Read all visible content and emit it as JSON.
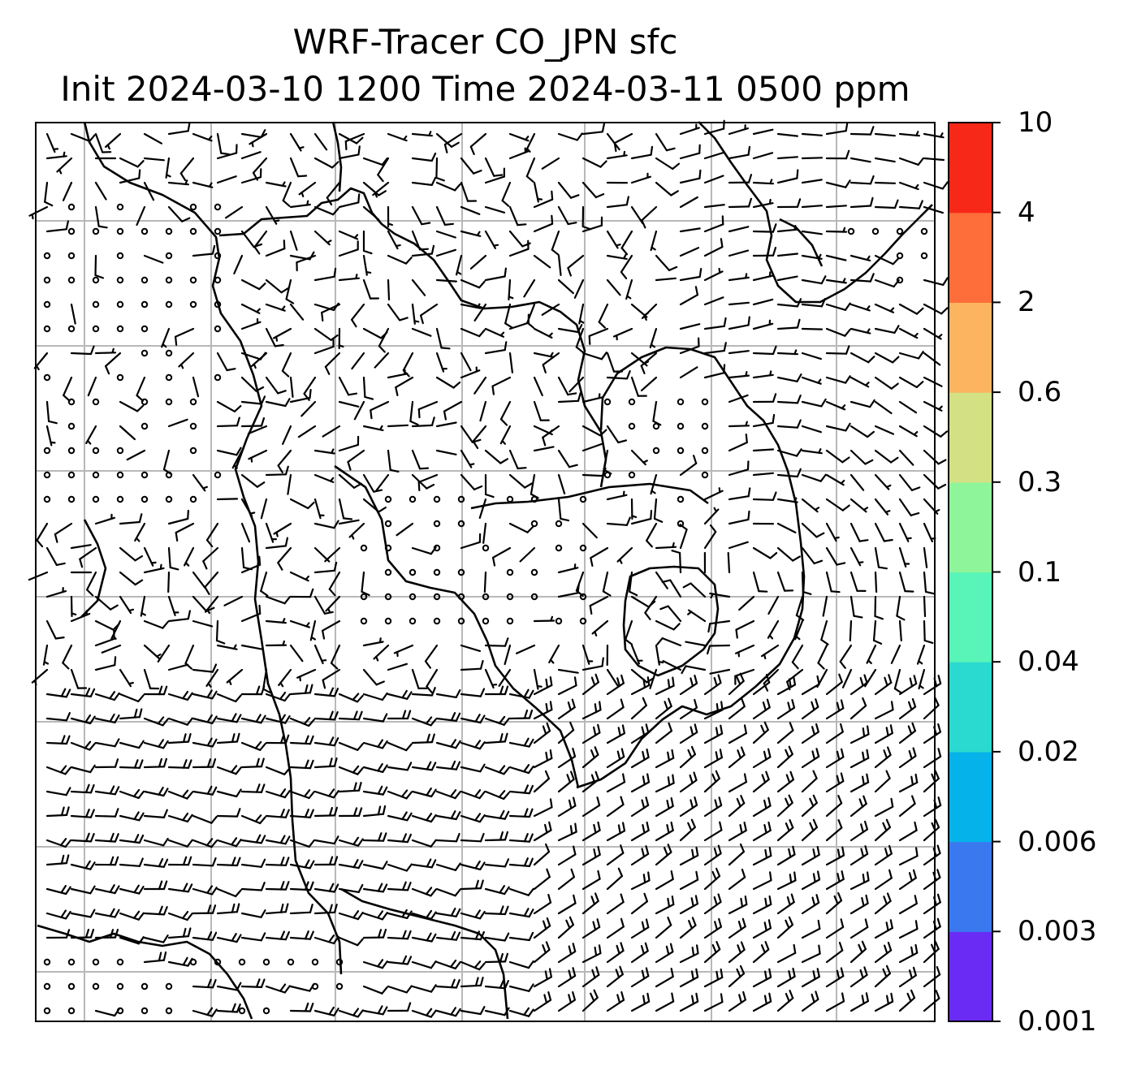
{
  "title": {
    "line1": "WRF-Tracer CO_JPN sfc",
    "line2": "Init 2024-03-10 1200 Time 2024-03-11 0500 ppm"
  },
  "colorbar": {
    "levels": [
      "0.001",
      "0.003",
      "0.006",
      "0.02",
      "0.04",
      "0.1",
      "0.3",
      "0.6",
      "2",
      "4",
      "10"
    ],
    "colors": [
      "#6a2cf5",
      "#3a78f0",
      "#06b2ea",
      "#2ad9d0",
      "#58f4b8",
      "#8ef59a",
      "#d3e084",
      "#fdb460",
      "#fe6e3a",
      "#f82818"
    ]
  },
  "map": {
    "grid": "on",
    "overlay": "wind barbs (circles = calm)",
    "coastlines": "on"
  },
  "colors": {
    "grid": "#b8b8b8",
    "barb": "#000000",
    "coast": "#000000"
  }
}
